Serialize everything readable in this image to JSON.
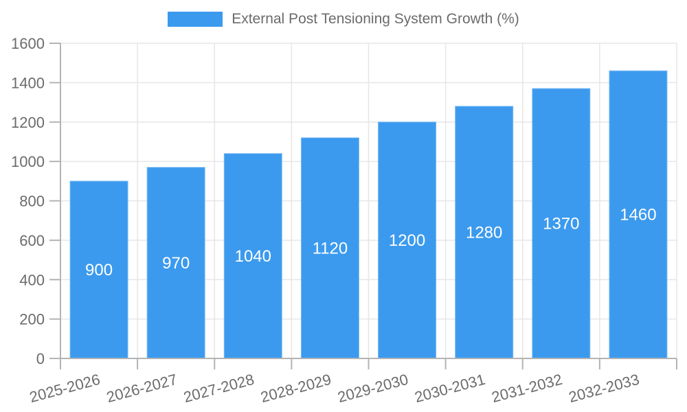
{
  "chart_data": {
    "type": "bar",
    "title": "External Post Tensioning System Growth (%)",
    "legend_position": "top",
    "categories": [
      "2025-2026",
      "2026-2027",
      "2027-2028",
      "2028-2029",
      "2029-2030",
      "2030-2031",
      "2031-2032",
      "2032-2033"
    ],
    "values": [
      900,
      970,
      1040,
      1120,
      1200,
      1280,
      1370,
      1460
    ],
    "value_labels": [
      "900",
      "970",
      "1040",
      "1120",
      "1200",
      "1280",
      "1370",
      "1460"
    ],
    "xlabel": "",
    "ylabel": "",
    "ylim": [
      0,
      1600
    ],
    "ytick_step": 200,
    "ytick_labels": [
      "0",
      "200",
      "400",
      "600",
      "800",
      "1000",
      "1200",
      "1400",
      "1600"
    ],
    "grid": true,
    "colors": {
      "bar_fill": "#3b9aee",
      "bar_border": "#7ab9f4",
      "value_label": "#ffffff",
      "grid_line": "#e6e6e6",
      "axis_line": "#b3b3b3",
      "tick_text": "#6b6b6b"
    }
  }
}
